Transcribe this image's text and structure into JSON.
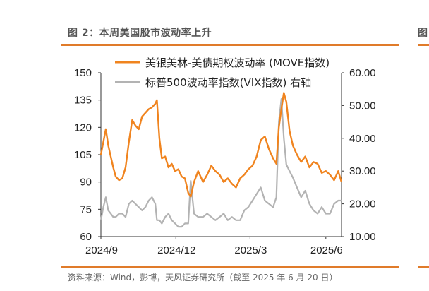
{
  "figure": {
    "title": "图 2：本周美国股市波动率上升",
    "source": "资料来源：Wind，彭博，天风证券研究所（截至 2025 年 6 月 20 日）",
    "next_panel_fragment": "图",
    "accent_color": "#e07b2a"
  },
  "chart_data": {
    "type": "line",
    "title": "",
    "grid": false,
    "legend_position": "top-right",
    "x_ticks": [
      "2024/9",
      "2024/12",
      "2025/3",
      "2025/6"
    ],
    "x_tick_dates": [
      "2024-09-01",
      "2024-12-01",
      "2025-03-01",
      "2025-06-01"
    ],
    "x_range": [
      "2024-09-01",
      "2025-06-20"
    ],
    "y_left": {
      "ticks": [
        "150",
        "135",
        "120",
        "105",
        "90",
        "75",
        "60"
      ],
      "range": [
        60,
        150
      ]
    },
    "y_right": {
      "ticks": [
        "60.00",
        "50.00",
        "40.00",
        "30.00",
        "20.00",
        "10.00"
      ],
      "range": [
        10,
        60
      ]
    },
    "series": [
      {
        "name": "美银美林-美债期权波动率 (MOVE指数)",
        "axis": "left",
        "color": "#f0841f",
        "x": [
          "2024-09-01",
          "2024-09-04",
          "2024-09-07",
          "2024-09-10",
          "2024-09-13",
          "2024-09-16",
          "2024-09-19",
          "2024-09-23",
          "2024-09-27",
          "2024-10-01",
          "2024-10-05",
          "2024-10-09",
          "2024-10-13",
          "2024-10-17",
          "2024-10-21",
          "2024-10-25",
          "2024-10-29",
          "2024-11-02",
          "2024-11-06",
          "2024-11-08",
          "2024-11-11",
          "2024-11-14",
          "2024-11-18",
          "2024-11-22",
          "2024-11-26",
          "2024-11-30",
          "2024-12-04",
          "2024-12-08",
          "2024-12-12",
          "2024-12-16",
          "2024-12-19",
          "2024-12-23",
          "2024-12-28",
          "2025-01-03",
          "2025-01-08",
          "2025-01-13",
          "2025-01-18",
          "2025-01-23",
          "2025-01-28",
          "2025-02-02",
          "2025-02-07",
          "2025-02-12",
          "2025-02-17",
          "2025-02-22",
          "2025-02-27",
          "2025-03-04",
          "2025-03-09",
          "2025-03-14",
          "2025-03-19",
          "2025-03-24",
          "2025-03-29",
          "2025-04-02",
          "2025-04-05",
          "2025-04-08",
          "2025-04-11",
          "2025-04-14",
          "2025-04-18",
          "2025-04-22",
          "2025-04-27",
          "2025-05-02",
          "2025-05-07",
          "2025-05-12",
          "2025-05-17",
          "2025-05-22",
          "2025-05-27",
          "2025-06-01",
          "2025-06-06",
          "2025-06-11",
          "2025-06-16",
          "2025-06-20"
        ],
        "values": [
          105,
          112,
          119,
          110,
          104,
          98,
          93,
          91,
          92,
          98,
          112,
          124,
          121,
          119,
          126,
          128,
          130,
          131,
          133,
          135,
          114,
          103,
          104,
          98,
          100,
          96,
          97,
          93,
          92,
          84,
          82,
          90,
          96,
          90,
          94,
          99,
          96,
          94,
          90,
          92,
          89,
          87,
          92,
          94,
          97,
          99,
          104,
          113,
          115,
          108,
          103,
          100,
          120,
          130,
          139,
          134,
          118,
          110,
          105,
          101,
          104,
          98,
          101,
          100,
          95,
          96,
          94,
          91,
          96,
          90
        ]
      },
      {
        "name": "标普500波动率指数(VIX指数)  右轴",
        "axis": "right",
        "color": "#b3b3b3",
        "x": [
          "2024-09-01",
          "2024-09-04",
          "2024-09-07",
          "2024-09-10",
          "2024-09-13",
          "2024-09-16",
          "2024-09-19",
          "2024-09-23",
          "2024-09-27",
          "2024-10-01",
          "2024-10-05",
          "2024-10-09",
          "2024-10-13",
          "2024-10-17",
          "2024-10-21",
          "2024-10-25",
          "2024-10-29",
          "2024-11-02",
          "2024-11-06",
          "2024-11-08",
          "2024-11-11",
          "2024-11-14",
          "2024-11-18",
          "2024-11-22",
          "2024-11-26",
          "2024-11-30",
          "2024-12-04",
          "2024-12-08",
          "2024-12-12",
          "2024-12-16",
          "2024-12-19",
          "2024-12-23",
          "2024-12-28",
          "2025-01-03",
          "2025-01-08",
          "2025-01-13",
          "2025-01-18",
          "2025-01-23",
          "2025-01-28",
          "2025-02-02",
          "2025-02-07",
          "2025-02-12",
          "2025-02-17",
          "2025-02-22",
          "2025-02-27",
          "2025-03-04",
          "2025-03-09",
          "2025-03-14",
          "2025-03-19",
          "2025-03-24",
          "2025-03-29",
          "2025-04-02",
          "2025-04-05",
          "2025-04-08",
          "2025-04-11",
          "2025-04-14",
          "2025-04-18",
          "2025-04-22",
          "2025-04-27",
          "2025-05-02",
          "2025-05-07",
          "2025-05-12",
          "2025-05-17",
          "2025-05-22",
          "2025-05-27",
          "2025-06-01",
          "2025-06-06",
          "2025-06-11",
          "2025-06-16",
          "2025-06-20"
        ],
        "values": [
          15,
          19,
          22,
          18,
          17,
          16,
          16,
          17,
          17,
          16,
          20,
          21,
          20,
          19,
          18,
          19,
          21,
          22,
          20,
          15,
          15,
          14,
          16,
          17,
          15,
          14,
          13,
          13,
          14,
          14,
          27,
          17,
          16,
          16,
          17,
          16,
          15,
          16,
          17,
          15,
          16,
          15,
          15,
          18,
          19,
          21,
          23,
          25,
          21,
          20,
          19,
          22,
          45,
          52,
          40,
          32,
          30,
          28,
          25,
          22,
          24,
          20,
          18,
          17,
          19,
          17,
          17,
          20,
          21,
          21
        ]
      }
    ]
  }
}
